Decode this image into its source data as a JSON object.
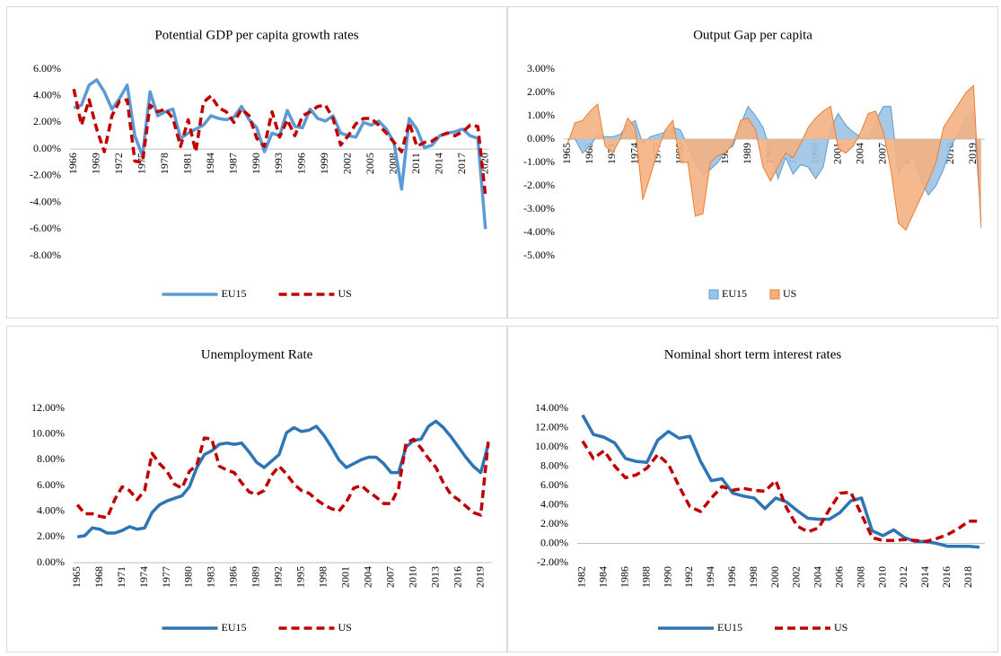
{
  "chart_data": [
    {
      "type": "line",
      "title": "Potential GDP per capita growth rates",
      "legend": "bottom",
      "grid": false,
      "categories": [
        "1966",
        null,
        null,
        "1969",
        null,
        null,
        "1972",
        null,
        null,
        "1975",
        null,
        null,
        "1978",
        null,
        null,
        "1981",
        null,
        null,
        "1984",
        null,
        null,
        "1987",
        null,
        null,
        "1990",
        null,
        null,
        "1993",
        null,
        null,
        "1996",
        null,
        null,
        "1999",
        null,
        null,
        "2002",
        null,
        null,
        "2005",
        null,
        null,
        "2008",
        null,
        null,
        "2011",
        null,
        null,
        "2014",
        null,
        null,
        "2017",
        null,
        null,
        "2020"
      ],
      "series": [
        {
          "name": "EU15",
          "color": "#5b9bd5",
          "dash": false,
          "values": [
            3.1,
            3.3,
            4.8,
            5.2,
            4.3,
            3.0,
            3.8,
            4.8,
            1.0,
            -0.5,
            4.3,
            2.5,
            2.8,
            3.0,
            0.8,
            1.2,
            1.5,
            1.8,
            2.5,
            2.3,
            2.2,
            2.4,
            3.2,
            2.2,
            1.6,
            -0.2,
            1.2,
            1.0,
            2.9,
            1.7,
            1.6,
            3.0,
            2.3,
            2.1,
            2.5,
            1.2,
            1.0,
            0.9,
            2.0,
            1.8,
            2.1,
            1.5,
            0.5,
            -3.0,
            2.3,
            1.5,
            0.1,
            0.3,
            1.0,
            1.2,
            1.3,
            1.5,
            1.0,
            0.8,
            -6.0
          ]
        },
        {
          "name": "US",
          "color": "#c00000",
          "dash": true,
          "values": [
            4.5,
            1.8,
            3.7,
            1.5,
            -0.2,
            2.5,
            3.6,
            3.7,
            -0.9,
            -1.0,
            3.3,
            2.8,
            3.0,
            2.3,
            0.2,
            2.2,
            -0.2,
            3.5,
            4.0,
            3.1,
            2.8,
            2.0,
            3.0,
            2.5,
            0.8,
            0.2,
            2.8,
            0.9,
            2.2,
            1.0,
            2.5,
            2.8,
            3.2,
            3.3,
            2.3,
            0.3,
            1.0,
            1.9,
            2.3,
            2.3,
            1.8,
            1.2,
            0.5,
            -0.2,
            2.0,
            0.2,
            0.5,
            0.6,
            1.0,
            1.2,
            1.0,
            1.3,
            1.8,
            1.7,
            -3.5
          ]
        }
      ],
      "ylim": [
        -8,
        6
      ],
      "yticks": [
        {
          "value": 6,
          "label": "6.00%"
        },
        {
          "value": 4,
          "label": "4.00%"
        },
        {
          "value": 2,
          "label": "2.00%"
        },
        {
          "value": 0,
          "label": "0.00%"
        },
        {
          "value": -2,
          "label": "-2.00%"
        },
        {
          "value": -4,
          "label": "-4.00%"
        },
        {
          "value": -6,
          "label": "-6.00%"
        },
        {
          "value": -8,
          "label": "-8.00%"
        }
      ]
    },
    {
      "type": "area",
      "title": "Output Gap per capita",
      "legend": "bottom",
      "grid": false,
      "categories": [
        "1965",
        null,
        null,
        "1968",
        null,
        null,
        "1971",
        null,
        null,
        "1974",
        null,
        null,
        "1977",
        null,
        null,
        "1980",
        null,
        null,
        "1983",
        null,
        null,
        "1986",
        null,
        null,
        "1989",
        null,
        null,
        "1992",
        null,
        null,
        "1995",
        null,
        null,
        "1998",
        null,
        null,
        "2001",
        null,
        null,
        "2004",
        null,
        null,
        "2007",
        null,
        null,
        "2010",
        null,
        null,
        "2013",
        null,
        null,
        "2016",
        null,
        null,
        "2019",
        null
      ],
      "series": [
        {
          "name": "EU15",
          "color": "#9dc3e6",
          "values": [
            0.0,
            0.0,
            -0.6,
            -0.3,
            0.2,
            0.1,
            0.1,
            0.2,
            0.6,
            0.8,
            -0.2,
            0.1,
            0.2,
            0.3,
            0.5,
            0.4,
            -0.3,
            -1.0,
            -1.5,
            -1.3,
            -1.0,
            -0.5,
            -0.3,
            0.6,
            1.4,
            1.0,
            0.5,
            -0.5,
            -1.7,
            -0.8,
            -1.5,
            -1.1,
            -1.2,
            -1.7,
            -1.2,
            0.5,
            1.1,
            0.6,
            0.3,
            0.1,
            0.0,
            0.8,
            1.4,
            1.4,
            -1.5,
            -1.0,
            -0.8,
            -1.8,
            -2.4,
            -2.0,
            -1.3,
            -0.3,
            0.3,
            0.9,
            1.2,
            -3.5
          ]
        },
        {
          "name": "US",
          "color": "#f4b183",
          "values": [
            -0.2,
            0.7,
            0.8,
            1.2,
            1.5,
            -0.3,
            -0.6,
            0.0,
            0.9,
            0.5,
            -2.6,
            -1.6,
            -0.5,
            0.4,
            0.8,
            -1.0,
            -1.0,
            -3.3,
            -3.2,
            -1.0,
            -0.7,
            -0.6,
            -0.2,
            0.8,
            0.9,
            0.4,
            -1.2,
            -1.8,
            -1.2,
            -0.6,
            -0.8,
            -0.2,
            0.5,
            0.9,
            1.2,
            1.4,
            -0.4,
            -0.6,
            -0.3,
            0.3,
            1.1,
            1.2,
            0.3,
            -1.3,
            -3.6,
            -3.9,
            -3.2,
            -2.5,
            -1.8,
            -1.0,
            0.5,
            1.0,
            1.5,
            2.0,
            2.3,
            -3.8
          ]
        }
      ],
      "ylim": [
        -5,
        3
      ],
      "yticks": [
        {
          "value": 3,
          "label": "3.00%"
        },
        {
          "value": 2,
          "label": "2.00%"
        },
        {
          "value": 1,
          "label": "1.00%"
        },
        {
          "value": 0,
          "label": "0.00%"
        },
        {
          "value": -1,
          "label": "-1.00%"
        },
        {
          "value": -2,
          "label": "-2.00%"
        },
        {
          "value": -3,
          "label": "-3.00%"
        },
        {
          "value": -4,
          "label": "-4.00%"
        },
        {
          "value": -5,
          "label": "-5.00%"
        }
      ]
    },
    {
      "type": "line",
      "title": "Unemployment Rate",
      "legend": "bottom",
      "grid": false,
      "categories": [
        "1965",
        null,
        null,
        "1968",
        null,
        null,
        "1971",
        null,
        null,
        "1974",
        null,
        null,
        "1977",
        null,
        null,
        "1980",
        null,
        null,
        "1983",
        null,
        null,
        "1986",
        null,
        null,
        "1989",
        null,
        null,
        "1992",
        null,
        null,
        "1995",
        null,
        null,
        "1998",
        null,
        null,
        "2001",
        null,
        null,
        "2004",
        null,
        null,
        "2007",
        null,
        null,
        "2010",
        null,
        null,
        "2013",
        null,
        null,
        "2016",
        null,
        null,
        "2019",
        null
      ],
      "series": [
        {
          "name": "EU15",
          "color": "#2e75b6",
          "dash": false,
          "values": [
            2.0,
            2.1,
            2.7,
            2.6,
            2.3,
            2.3,
            2.5,
            2.8,
            2.6,
            2.7,
            3.9,
            4.5,
            4.8,
            5.0,
            5.2,
            5.9,
            7.4,
            8.4,
            8.7,
            9.2,
            9.3,
            9.2,
            9.3,
            8.6,
            7.8,
            7.4,
            7.9,
            8.4,
            10.1,
            10.5,
            10.2,
            10.3,
            10.6,
            9.9,
            9.0,
            8.0,
            7.4,
            7.7,
            8.0,
            8.2,
            8.2,
            7.7,
            7.0,
            7.0,
            9.0,
            9.5,
            9.6,
            10.6,
            11.0,
            10.5,
            9.8,
            9.0,
            8.2,
            7.5,
            7.0,
            9.2
          ]
        },
        {
          "name": "US",
          "color": "#c00000",
          "dash": true,
          "values": [
            4.5,
            3.8,
            3.8,
            3.6,
            3.5,
            4.9,
            5.9,
            5.6,
            4.9,
            5.6,
            8.5,
            7.7,
            7.1,
            6.1,
            5.8,
            7.1,
            7.6,
            9.7,
            9.6,
            7.5,
            7.2,
            7.0,
            6.2,
            5.5,
            5.3,
            5.6,
            6.8,
            7.5,
            6.9,
            6.1,
            5.6,
            5.4,
            4.9,
            4.5,
            4.2,
            4.0,
            4.7,
            5.8,
            6.0,
            5.5,
            5.1,
            4.6,
            4.6,
            5.8,
            9.3,
            9.6,
            8.9,
            8.1,
            7.4,
            6.2,
            5.3,
            4.9,
            4.4,
            3.9,
            3.7,
            9.4
          ]
        }
      ],
      "ylim": [
        0,
        12
      ],
      "yticks": [
        {
          "value": 12,
          "label": "12.00%"
        },
        {
          "value": 10,
          "label": "10.00%"
        },
        {
          "value": 8,
          "label": "8.00%"
        },
        {
          "value": 6,
          "label": "6.00%"
        },
        {
          "value": 4,
          "label": "4.00%"
        },
        {
          "value": 2,
          "label": "2.00%"
        },
        {
          "value": 0,
          "label": "0.00%"
        }
      ]
    },
    {
      "type": "line",
      "title": "Nominal short term interest rates",
      "legend": "bottom",
      "grid": false,
      "categories": [
        "1982",
        null,
        "1984",
        null,
        "1986",
        null,
        "1988",
        null,
        "1990",
        null,
        "1992",
        null,
        "1994",
        null,
        "1996",
        null,
        "1998",
        null,
        "2000",
        null,
        "2002",
        null,
        "2004",
        null,
        "2006",
        null,
        "2008",
        null,
        "2010",
        null,
        "2012",
        null,
        "2014",
        null,
        "2016",
        null,
        "2018",
        null
      ],
      "series": [
        {
          "name": "EU15",
          "color": "#2e75b6",
          "dash": false,
          "values": [
            13.3,
            11.3,
            11.0,
            10.4,
            8.8,
            8.5,
            8.4,
            10.7,
            11.6,
            10.9,
            11.1,
            8.5,
            6.5,
            6.7,
            5.2,
            4.9,
            4.7,
            3.6,
            4.7,
            4.3,
            3.4,
            2.6,
            2.5,
            2.5,
            3.2,
            4.4,
            4.7,
            1.3,
            0.8,
            1.4,
            0.6,
            0.2,
            0.2,
            0.0,
            -0.3,
            -0.3,
            -0.3,
            -0.4
          ]
        },
        {
          "name": "US",
          "color": "#c00000",
          "dash": true,
          "values": [
            10.6,
            8.8,
            9.6,
            8.0,
            6.8,
            7.1,
            7.8,
            9.2,
            8.2,
            5.9,
            3.8,
            3.3,
            4.7,
            5.9,
            5.5,
            5.7,
            5.5,
            5.4,
            6.5,
            3.7,
            1.8,
            1.2,
            1.6,
            3.5,
            5.2,
            5.3,
            3.0,
            0.6,
            0.3,
            0.3,
            0.4,
            0.3,
            0.2,
            0.5,
            0.9,
            1.5,
            2.3,
            2.3
          ]
        }
      ],
      "ylim": [
        -2,
        14
      ],
      "yticks": [
        {
          "value": 14,
          "label": "14.00%"
        },
        {
          "value": 12,
          "label": "12.00%"
        },
        {
          "value": 10,
          "label": "10.00%"
        },
        {
          "value": 8,
          "label": "8.00%"
        },
        {
          "value": 6,
          "label": "6.00%"
        },
        {
          "value": 4,
          "label": "4.00%"
        },
        {
          "value": 2,
          "label": "2.00%"
        },
        {
          "value": 0,
          "label": "0.00%"
        },
        {
          "value": -2,
          "label": "-2.00%"
        }
      ]
    }
  ]
}
